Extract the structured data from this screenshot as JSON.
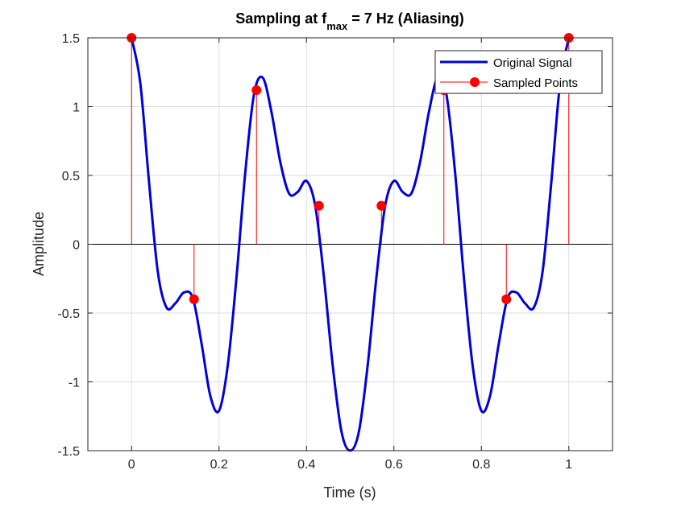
{
  "chart_data": {
    "type": "line",
    "title_main": "Sampling at f",
    "title_sub": "max",
    "title_rest": " = 7 Hz (Aliasing)",
    "xlabel": "Time (s)",
    "ylabel": "Amplitude",
    "xlim": [
      -0.1,
      1.1
    ],
    "ylim": [
      -1.5,
      1.5
    ],
    "xticks": [
      0,
      0.2,
      0.4,
      0.6,
      0.8,
      1
    ],
    "xtick_labels": [
      "0",
      "0.2",
      "0.4",
      "0.6",
      "0.8",
      "1"
    ],
    "yticks": [
      -1.5,
      -1,
      -0.5,
      0,
      0.5,
      1,
      1.5
    ],
    "ytick_labels": [
      "-1.5",
      "-1",
      "-0.5",
      "0",
      "0.5",
      "1",
      "1.5"
    ],
    "grid": true,
    "legend_position": "top-right",
    "series": [
      {
        "name": "Original Signal",
        "kind": "line",
        "color": "#0000dd",
        "x": [
          0,
          0.02,
          0.04,
          0.06,
          0.08,
          0.1,
          0.12,
          0.14,
          0.16,
          0.18,
          0.2,
          0.22,
          0.24,
          0.26,
          0.28,
          0.3,
          0.32,
          0.34,
          0.36,
          0.38,
          0.4,
          0.42,
          0.44,
          0.46,
          0.48,
          0.5,
          0.52,
          0.54,
          0.56,
          0.58,
          0.6,
          0.62,
          0.64,
          0.66,
          0.68,
          0.7,
          0.72,
          0.74,
          0.76,
          0.78,
          0.8,
          0.82,
          0.84,
          0.86,
          0.88,
          0.9,
          0.92,
          0.94,
          0.96,
          0.98,
          1
        ],
        "y": [
          1.5,
          1.17,
          0.45,
          -0.2,
          -0.46,
          -0.43,
          -0.35,
          -0.39,
          -0.72,
          -1.1,
          -1.21,
          -0.88,
          -0.24,
          0.52,
          1.09,
          1.21,
          0.96,
          0.6,
          0.37,
          0.38,
          0.46,
          0.28,
          -0.24,
          -0.88,
          -1.36,
          -1.5,
          -1.36,
          -0.88,
          -0.24,
          0.28,
          0.46,
          0.38,
          0.37,
          0.6,
          0.96,
          1.21,
          1.09,
          0.52,
          -0.24,
          -0.88,
          -1.21,
          -1.1,
          -0.72,
          -0.39,
          -0.35,
          -0.43,
          -0.46,
          -0.2,
          0.45,
          1.17,
          1.5
        ]
      },
      {
        "name": "Sampled Points",
        "kind": "stem",
        "color": "#ff0000",
        "x": [
          0,
          0.1429,
          0.2857,
          0.4286,
          0.5714,
          0.7143,
          0.8571,
          1
        ],
        "y": [
          1.5,
          -0.4,
          1.12,
          0.28,
          0.28,
          1.12,
          -0.4,
          1.5
        ]
      }
    ]
  }
}
